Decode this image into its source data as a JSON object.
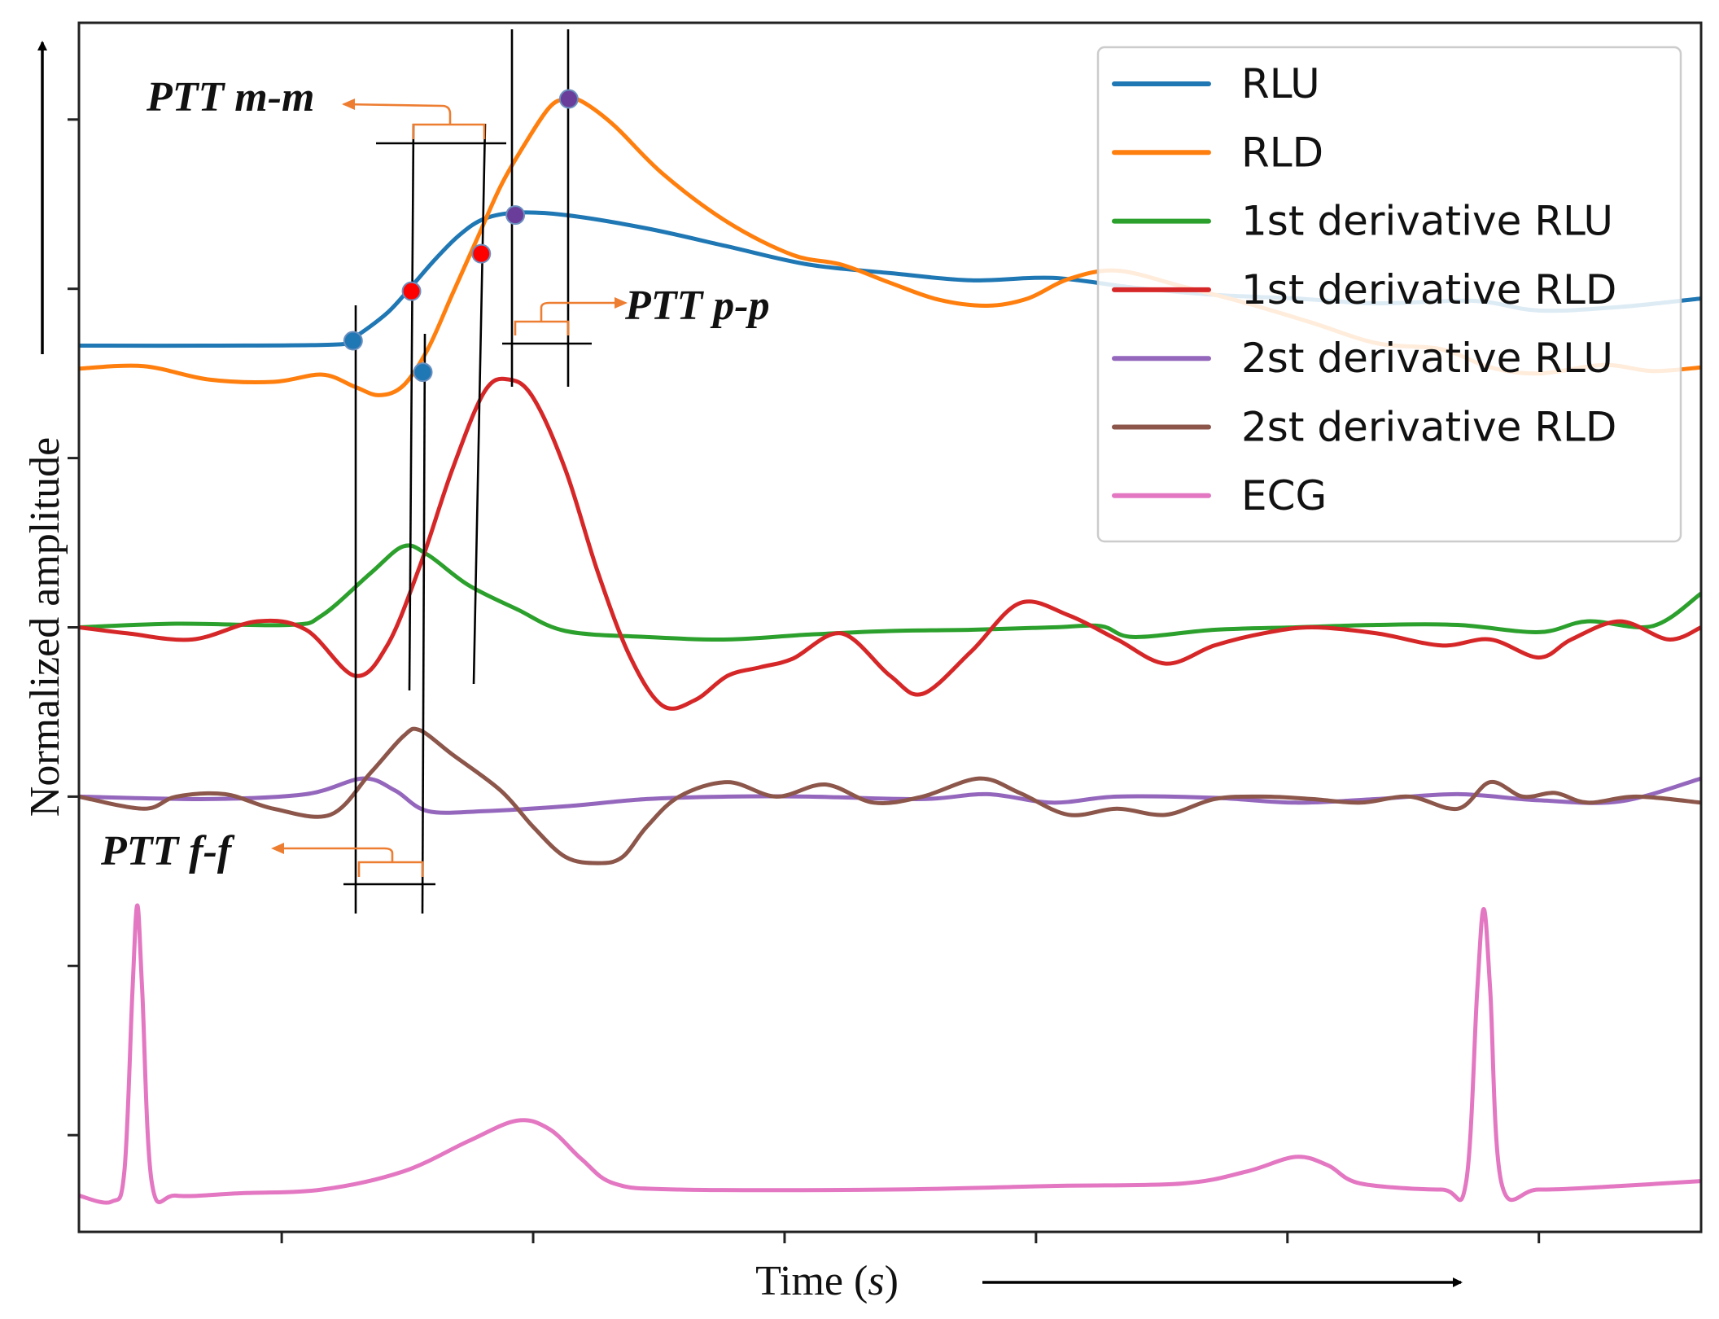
{
  "chart_data": {
    "type": "line",
    "title": "",
    "xlabel": "Time (s)",
    "xlabel_prefix": "Time (",
    "xlabel_unit": "s",
    "xlabel_suffix": ")",
    "ylabel": "Normalized amplitude",
    "xlim": [
      0,
      1
    ],
    "ylim": [
      0,
      1
    ],
    "grid": false,
    "legend_position": "top-right",
    "ticks_labeled": false,
    "x_ticks": [
      0.125,
      0.28,
      0.435,
      0.59,
      0.745,
      0.9
    ],
    "y_ticks": [
      0.92,
      0.78,
      0.64,
      0.5,
      0.36,
      0.22,
      0.08
    ],
    "series": [
      {
        "name": "RLU",
        "color": "#1f77b4",
        "points": [
          [
            0,
            0.733
          ],
          [
            0.08,
            0.733
          ],
          [
            0.16,
            0.734
          ],
          [
            0.17,
            0.74
          ],
          [
            0.19,
            0.76
          ],
          [
            0.205,
            0.782
          ],
          [
            0.22,
            0.805
          ],
          [
            0.235,
            0.825
          ],
          [
            0.25,
            0.838
          ],
          [
            0.27,
            0.843
          ],
          [
            0.3,
            0.841
          ],
          [
            0.35,
            0.83
          ],
          [
            0.4,
            0.815
          ],
          [
            0.45,
            0.8
          ],
          [
            0.5,
            0.793
          ],
          [
            0.55,
            0.787
          ],
          [
            0.6,
            0.789
          ],
          [
            0.65,
            0.781
          ],
          [
            0.7,
            0.775
          ],
          [
            0.75,
            0.772
          ],
          [
            0.8,
            0.768
          ],
          [
            0.86,
            0.77
          ],
          [
            0.9,
            0.762
          ],
          [
            0.95,
            0.765
          ],
          [
            1.0,
            0.772
          ]
        ]
      },
      {
        "name": "RLD",
        "color": "#ff7f0e",
        "points": [
          [
            0,
            0.714
          ],
          [
            0.04,
            0.716
          ],
          [
            0.08,
            0.705
          ],
          [
            0.12,
            0.703
          ],
          [
            0.15,
            0.709
          ],
          [
            0.17,
            0.699
          ],
          [
            0.185,
            0.692
          ],
          [
            0.2,
            0.7
          ],
          [
            0.215,
            0.73
          ],
          [
            0.23,
            0.775
          ],
          [
            0.245,
            0.82
          ],
          [
            0.26,
            0.865
          ],
          [
            0.275,
            0.9
          ],
          [
            0.29,
            0.93
          ],
          [
            0.3,
            0.937
          ],
          [
            0.31,
            0.935
          ],
          [
            0.33,
            0.915
          ],
          [
            0.36,
            0.875
          ],
          [
            0.4,
            0.835
          ],
          [
            0.44,
            0.808
          ],
          [
            0.47,
            0.8
          ],
          [
            0.5,
            0.785
          ],
          [
            0.53,
            0.771
          ],
          [
            0.56,
            0.766
          ],
          [
            0.585,
            0.772
          ],
          [
            0.61,
            0.788
          ],
          [
            0.64,
            0.795
          ],
          [
            0.68,
            0.782
          ],
          [
            0.72,
            0.768
          ],
          [
            0.76,
            0.752
          ],
          [
            0.8,
            0.735
          ],
          [
            0.84,
            0.73
          ],
          [
            0.87,
            0.715
          ],
          [
            0.9,
            0.71
          ],
          [
            0.94,
            0.717
          ],
          [
            0.97,
            0.712
          ],
          [
            1.0,
            0.715
          ]
        ]
      },
      {
        "name": "1st derivative RLU",
        "color": "#2ca02c",
        "points": [
          [
            0,
            0.5
          ],
          [
            0.06,
            0.503
          ],
          [
            0.13,
            0.502
          ],
          [
            0.15,
            0.51
          ],
          [
            0.18,
            0.545
          ],
          [
            0.2,
            0.567
          ],
          [
            0.215,
            0.56
          ],
          [
            0.24,
            0.535
          ],
          [
            0.27,
            0.515
          ],
          [
            0.3,
            0.497
          ],
          [
            0.35,
            0.492
          ],
          [
            0.4,
            0.49
          ],
          [
            0.45,
            0.494
          ],
          [
            0.5,
            0.497
          ],
          [
            0.55,
            0.498
          ],
          [
            0.6,
            0.5
          ],
          [
            0.63,
            0.501
          ],
          [
            0.65,
            0.492
          ],
          [
            0.7,
            0.498
          ],
          [
            0.75,
            0.5
          ],
          [
            0.8,
            0.502
          ],
          [
            0.85,
            0.502
          ],
          [
            0.9,
            0.496
          ],
          [
            0.93,
            0.505
          ],
          [
            0.97,
            0.501
          ],
          [
            1.0,
            0.528
          ]
        ]
      },
      {
        "name": "1st derivative RLD",
        "color": "#d62728",
        "points": [
          [
            0,
            0.5
          ],
          [
            0.03,
            0.495
          ],
          [
            0.07,
            0.49
          ],
          [
            0.11,
            0.505
          ],
          [
            0.14,
            0.498
          ],
          [
            0.17,
            0.46
          ],
          [
            0.19,
            0.485
          ],
          [
            0.21,
            0.55
          ],
          [
            0.23,
            0.63
          ],
          [
            0.25,
            0.695
          ],
          [
            0.265,
            0.705
          ],
          [
            0.28,
            0.69
          ],
          [
            0.3,
            0.63
          ],
          [
            0.32,
            0.545
          ],
          [
            0.34,
            0.475
          ],
          [
            0.36,
            0.435
          ],
          [
            0.38,
            0.44
          ],
          [
            0.4,
            0.46
          ],
          [
            0.42,
            0.467
          ],
          [
            0.44,
            0.474
          ],
          [
            0.47,
            0.495
          ],
          [
            0.5,
            0.46
          ],
          [
            0.52,
            0.445
          ],
          [
            0.55,
            0.48
          ],
          [
            0.58,
            0.52
          ],
          [
            0.61,
            0.51
          ],
          [
            0.64,
            0.49
          ],
          [
            0.67,
            0.47
          ],
          [
            0.7,
            0.485
          ],
          [
            0.73,
            0.495
          ],
          [
            0.76,
            0.5
          ],
          [
            0.8,
            0.495
          ],
          [
            0.84,
            0.485
          ],
          [
            0.87,
            0.49
          ],
          [
            0.9,
            0.475
          ],
          [
            0.92,
            0.49
          ],
          [
            0.95,
            0.505
          ],
          [
            0.98,
            0.49
          ],
          [
            1.0,
            0.5
          ]
        ]
      },
      {
        "name": "2st derivative RLU",
        "color": "#9467bd",
        "points": [
          [
            0,
            0.36
          ],
          [
            0.08,
            0.358
          ],
          [
            0.14,
            0.362
          ],
          [
            0.175,
            0.375
          ],
          [
            0.195,
            0.365
          ],
          [
            0.215,
            0.348
          ],
          [
            0.25,
            0.348
          ],
          [
            0.3,
            0.352
          ],
          [
            0.35,
            0.358
          ],
          [
            0.4,
            0.36
          ],
          [
            0.45,
            0.36
          ],
          [
            0.52,
            0.358
          ],
          [
            0.56,
            0.362
          ],
          [
            0.6,
            0.355
          ],
          [
            0.64,
            0.36
          ],
          [
            0.7,
            0.359
          ],
          [
            0.75,
            0.355
          ],
          [
            0.8,
            0.358
          ],
          [
            0.85,
            0.362
          ],
          [
            0.9,
            0.357
          ],
          [
            0.95,
            0.356
          ],
          [
            1.0,
            0.375
          ]
        ]
      },
      {
        "name": "2st derivative RLD",
        "color": "#8c564b",
        "points": [
          [
            0,
            0.36
          ],
          [
            0.04,
            0.35
          ],
          [
            0.06,
            0.36
          ],
          [
            0.09,
            0.362
          ],
          [
            0.12,
            0.35
          ],
          [
            0.155,
            0.345
          ],
          [
            0.18,
            0.38
          ],
          [
            0.2,
            0.41
          ],
          [
            0.21,
            0.415
          ],
          [
            0.23,
            0.395
          ],
          [
            0.26,
            0.365
          ],
          [
            0.28,
            0.335
          ],
          [
            0.3,
            0.31
          ],
          [
            0.32,
            0.305
          ],
          [
            0.335,
            0.31
          ],
          [
            0.35,
            0.335
          ],
          [
            0.37,
            0.36
          ],
          [
            0.4,
            0.372
          ],
          [
            0.43,
            0.36
          ],
          [
            0.46,
            0.37
          ],
          [
            0.49,
            0.355
          ],
          [
            0.52,
            0.36
          ],
          [
            0.555,
            0.375
          ],
          [
            0.58,
            0.363
          ],
          [
            0.61,
            0.345
          ],
          [
            0.64,
            0.35
          ],
          [
            0.67,
            0.345
          ],
          [
            0.7,
            0.358
          ],
          [
            0.73,
            0.36
          ],
          [
            0.76,
            0.358
          ],
          [
            0.79,
            0.355
          ],
          [
            0.82,
            0.36
          ],
          [
            0.85,
            0.35
          ],
          [
            0.87,
            0.372
          ],
          [
            0.89,
            0.36
          ],
          [
            0.91,
            0.363
          ],
          [
            0.93,
            0.355
          ],
          [
            0.96,
            0.36
          ],
          [
            1.0,
            0.355
          ]
        ]
      },
      {
        "name": "ECG",
        "color": "#e377c2",
        "points": [
          [
            0,
            0.03
          ],
          [
            0.02,
            0.025
          ],
          [
            0.028,
            0.05
          ],
          [
            0.033,
            0.2
          ],
          [
            0.036,
            0.27
          ],
          [
            0.039,
            0.2
          ],
          [
            0.045,
            0.04
          ],
          [
            0.06,
            0.03
          ],
          [
            0.1,
            0.032
          ],
          [
            0.15,
            0.035
          ],
          [
            0.2,
            0.05
          ],
          [
            0.24,
            0.075
          ],
          [
            0.27,
            0.092
          ],
          [
            0.29,
            0.085
          ],
          [
            0.31,
            0.06
          ],
          [
            0.33,
            0.04
          ],
          [
            0.37,
            0.035
          ],
          [
            0.5,
            0.035
          ],
          [
            0.6,
            0.038
          ],
          [
            0.68,
            0.04
          ],
          [
            0.72,
            0.05
          ],
          [
            0.75,
            0.062
          ],
          [
            0.77,
            0.055
          ],
          [
            0.79,
            0.04
          ],
          [
            0.84,
            0.035
          ],
          [
            0.855,
            0.04
          ],
          [
            0.862,
            0.2
          ],
          [
            0.866,
            0.267
          ],
          [
            0.87,
            0.2
          ],
          [
            0.877,
            0.04
          ],
          [
            0.9,
            0.035
          ],
          [
            0.95,
            0.038
          ],
          [
            1.0,
            0.042
          ]
        ]
      }
    ],
    "markers": [
      {
        "series": "RLU",
        "color": "#1f77b4",
        "x": 0.169,
        "y": 0.737
      },
      {
        "series": "RLD",
        "color": "#1f77b4",
        "x": 0.212,
        "y": 0.711
      },
      {
        "series": "RLU",
        "color": "#ff0000",
        "x": 0.205,
        "y": 0.778
      },
      {
        "series": "RLD",
        "color": "#ff0000",
        "x": 0.248,
        "y": 0.809
      },
      {
        "series": "RLU",
        "color": "#6a3d9a",
        "x": 0.269,
        "y": 0.841
      },
      {
        "series": "RLD",
        "color": "#6a3d9a",
        "x": 0.302,
        "y": 0.937
      }
    ],
    "annotations": [
      {
        "label": "PTT m-m"
      },
      {
        "label": "PTT p-p"
      },
      {
        "label": "PTT f-f"
      }
    ]
  }
}
